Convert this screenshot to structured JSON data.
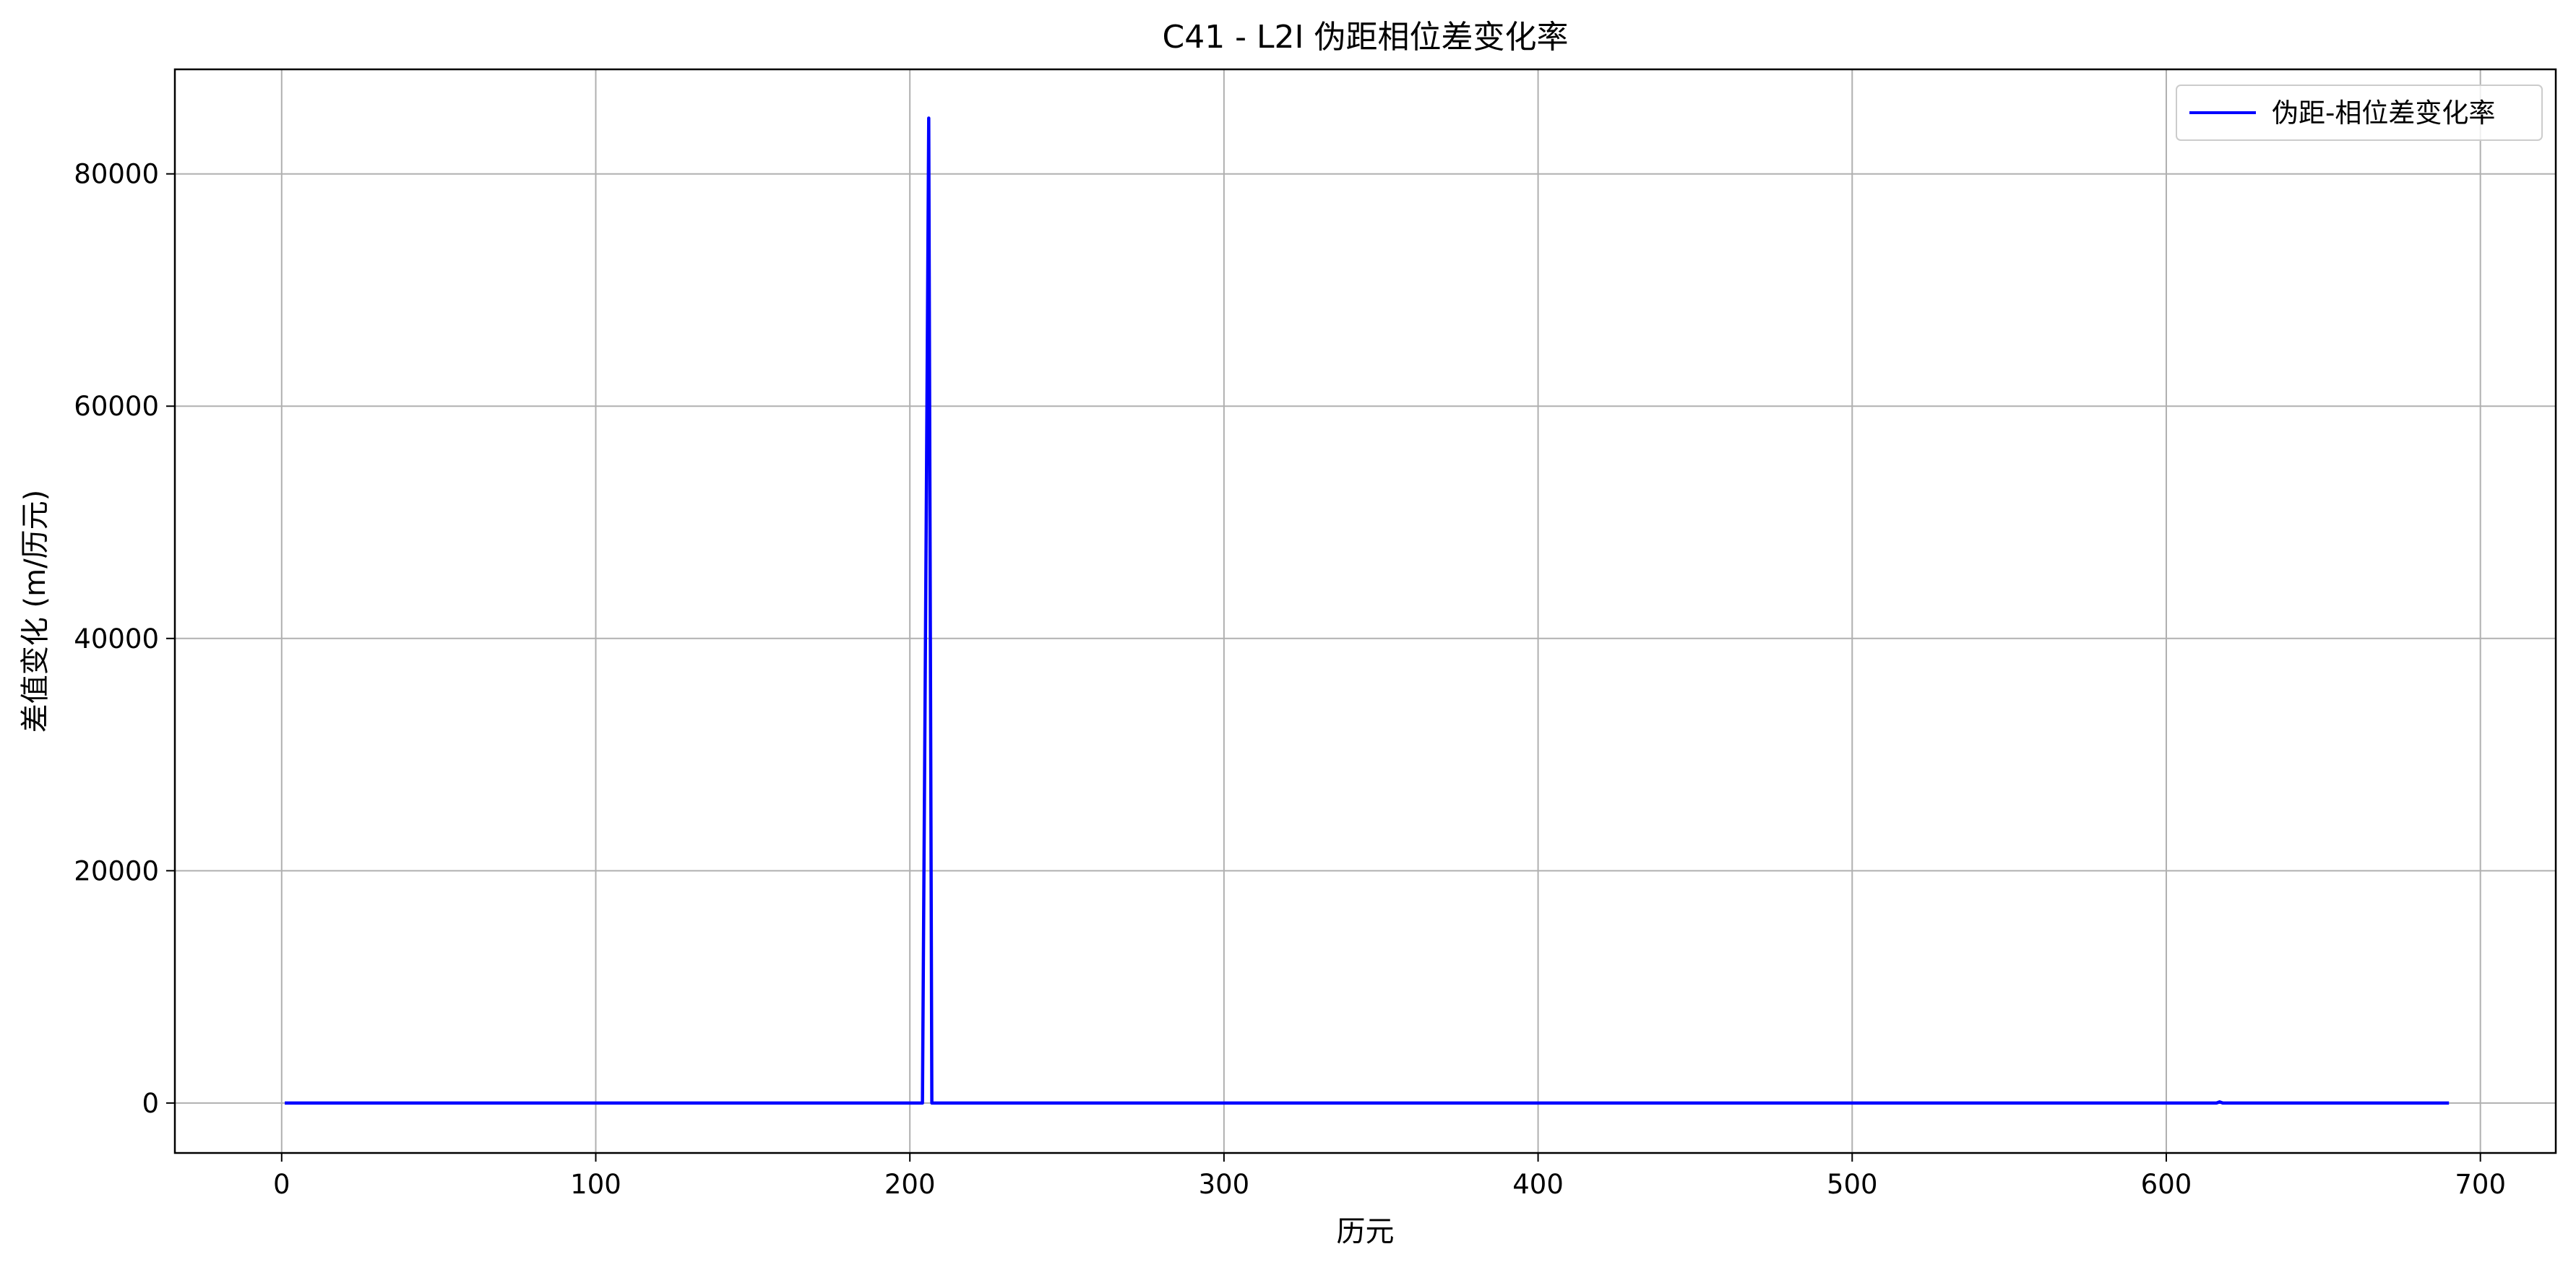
{
  "chart_data": {
    "type": "line",
    "title": "C41 - L2I 伪距相位差变化率",
    "xlabel": "历元",
    "ylabel": "差值变化 (m/历元)",
    "xlim": [
      -34,
      724
    ],
    "ylim": [
      -4300,
      89000
    ],
    "xticks": [
      0,
      100,
      200,
      300,
      400,
      500,
      600,
      700
    ],
    "yticks": [
      0,
      20000,
      40000,
      60000,
      80000
    ],
    "xtick_labels": [
      "0",
      "100",
      "200",
      "300",
      "400",
      "500",
      "600",
      "700"
    ],
    "ytick_labels": [
      "0",
      "20000",
      "40000",
      "60000",
      "80000"
    ],
    "grid": true,
    "legend_position": "top-right",
    "series": [
      {
        "name": "伪距-相位差变化率",
        "color": "#0000ff",
        "points": [
          [
            1,
            0
          ],
          [
            50,
            0
          ],
          [
            100,
            0
          ],
          [
            150,
            0
          ],
          [
            200,
            0
          ],
          [
            204,
            0
          ],
          [
            205,
            41000
          ],
          [
            206,
            84800
          ],
          [
            207,
            0
          ],
          [
            208,
            0
          ],
          [
            250,
            0
          ],
          [
            300,
            0
          ],
          [
            350,
            0
          ],
          [
            400,
            0
          ],
          [
            450,
            0
          ],
          [
            500,
            0
          ],
          [
            550,
            0
          ],
          [
            600,
            0
          ],
          [
            616,
            0
          ],
          [
            617,
            100
          ],
          [
            618,
            0
          ],
          [
            650,
            0
          ],
          [
            690,
            0
          ]
        ]
      }
    ]
  }
}
